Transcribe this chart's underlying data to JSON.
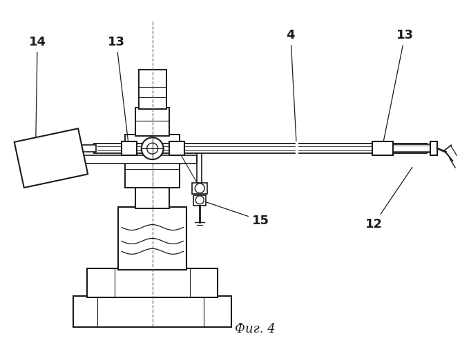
{
  "caption": "Фиг. 4",
  "background_color": "#ffffff",
  "line_color": "#1a1a1a",
  "label_fontsize": 13
}
